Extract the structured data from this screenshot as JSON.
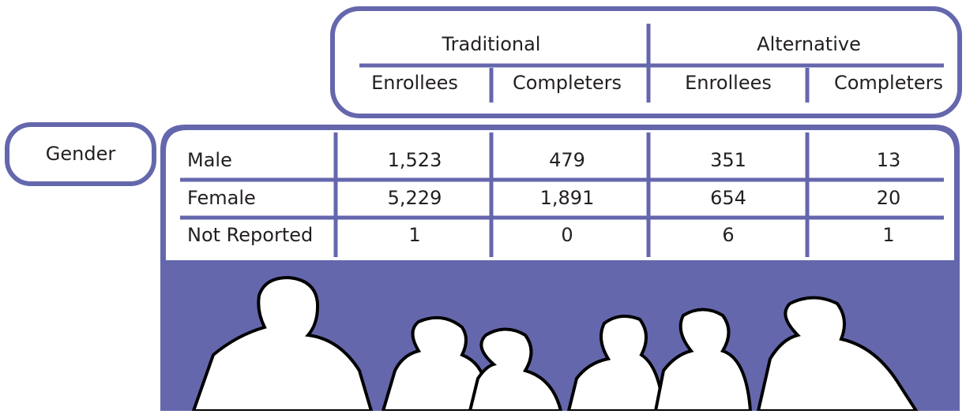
{
  "header": {
    "groups": [
      "Traditional",
      "Alternative"
    ],
    "columns": [
      "Enrollees",
      "Completers",
      "Enrollees",
      "Completers"
    ]
  },
  "row_header": "Gender",
  "table": {
    "rows": [
      [
        "Male",
        "1,523",
        "479",
        "351",
        "13"
      ],
      [
        "Female",
        "5,229",
        "1,891",
        "654",
        "20"
      ],
      [
        "Not Reported",
        "1",
        "0",
        "6",
        "1"
      ]
    ]
  }
}
